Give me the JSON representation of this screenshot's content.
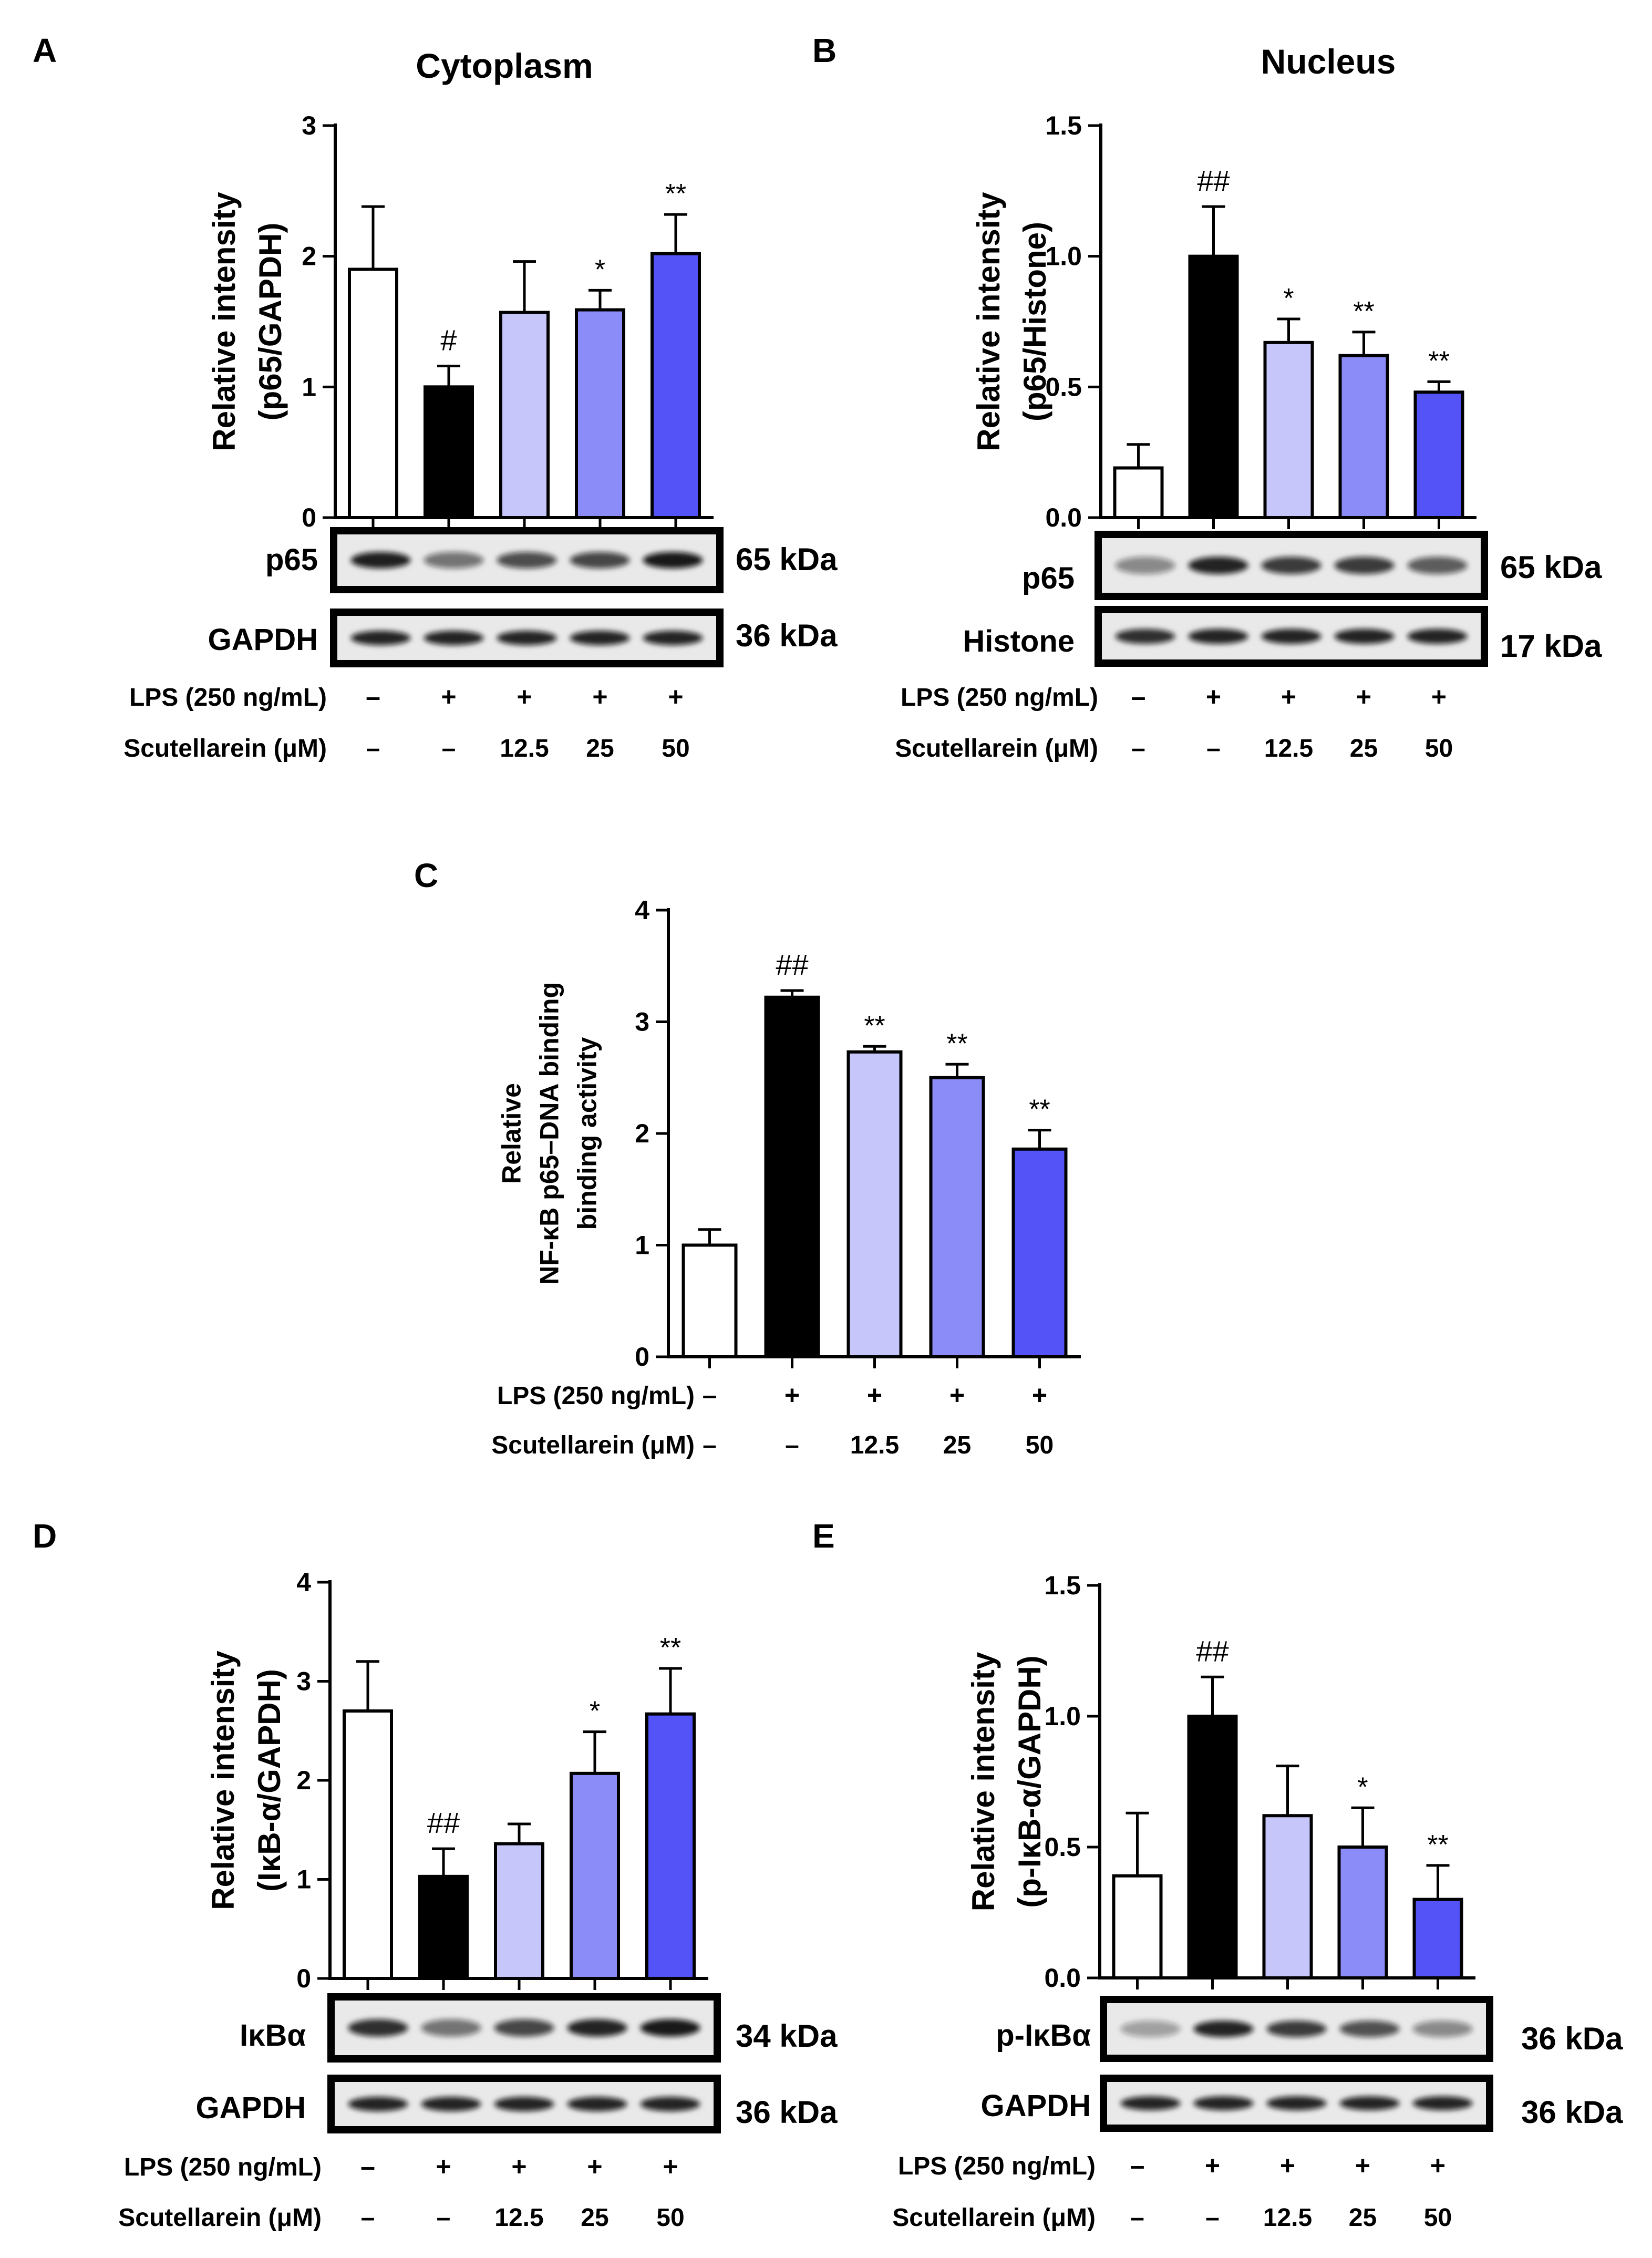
{
  "treatment_labels": {
    "lps": "LPS (250 ng/mL)",
    "scut": "Scutellarein (μM)",
    "lps_signs": [
      "–",
      "+",
      "+",
      "+",
      "+"
    ],
    "scut_doses": [
      "–",
      "–",
      "12.5",
      "25",
      "50"
    ]
  },
  "bar_colors": [
    "#ffffff",
    "#000000",
    "#c6c6fb",
    "#8c8cf9",
    "#5353f8"
  ],
  "chart_data": [
    {
      "id": "A",
      "panel_letter": "A",
      "type": "bar",
      "title": "Cytoplasm",
      "ylabel": [
        "Relative intensity",
        "(p65/GAPDH)"
      ],
      "ylim": [
        0,
        3
      ],
      "yticks": [
        "0",
        "1",
        "2",
        "3"
      ],
      "categories": [
        "Control",
        "LPS",
        "LPS+12.5",
        "LPS+25",
        "LPS+50"
      ],
      "values": [
        1.9,
        1.0,
        1.57,
        1.59,
        2.02
      ],
      "errors": [
        0.48,
        0.16,
        0.39,
        0.15,
        0.3
      ],
      "annotations": [
        "",
        "#",
        "",
        "*",
        "**"
      ],
      "blots": [
        {
          "label": "p65",
          "kda": "65 kDa",
          "bands": [
            0.92,
            0.55,
            0.72,
            0.75,
            0.95
          ]
        },
        {
          "label": "GAPDH",
          "kda": "36 kDa",
          "bands": [
            0.9,
            0.9,
            0.9,
            0.9,
            0.9
          ]
        }
      ]
    },
    {
      "id": "B",
      "panel_letter": "B",
      "type": "bar",
      "title": "Nucleus",
      "ylabel": [
        "Relative intensity",
        "(p65/Histone)"
      ],
      "ylim": [
        0,
        1.5
      ],
      "yticks": [
        "0.0",
        "0.5",
        "1.0",
        "1.5"
      ],
      "categories": [
        "Control",
        "LPS",
        "LPS+12.5",
        "LPS+25",
        "LPS+50"
      ],
      "values": [
        0.19,
        1.0,
        0.67,
        0.62,
        0.48
      ],
      "errors": [
        0.09,
        0.19,
        0.09,
        0.09,
        0.04
      ],
      "annotations": [
        "",
        "##",
        "*",
        "**",
        "**"
      ],
      "blots": [
        {
          "label": "p65",
          "kda": "65 kDa",
          "bands": [
            0.45,
            0.9,
            0.8,
            0.8,
            0.65
          ]
        },
        {
          "label": "Histone",
          "kda": "17 kDa",
          "bands": [
            0.85,
            0.9,
            0.9,
            0.9,
            0.9
          ]
        }
      ]
    },
    {
      "id": "C",
      "panel_letter": "C",
      "type": "bar",
      "title": "",
      "ylabel": [
        "Relative",
        "NF-κB p65–DNA binding",
        "binding activity"
      ],
      "ylim": [
        0,
        4
      ],
      "yticks": [
        "0",
        "1",
        "2",
        "3",
        "4"
      ],
      "categories": [
        "Control",
        "LPS",
        "LPS+12.5",
        "LPS+25",
        "LPS+50"
      ],
      "values": [
        1.0,
        3.22,
        2.73,
        2.5,
        1.86
      ],
      "errors": [
        0.14,
        0.06,
        0.05,
        0.12,
        0.17
      ],
      "annotations": [
        "",
        "##",
        "**",
        "**",
        "**"
      ],
      "blots": []
    },
    {
      "id": "D",
      "panel_letter": "D",
      "type": "bar",
      "title": "",
      "ylabel": [
        "Relative intensity",
        "(IκB-α/GAPDH)"
      ],
      "ylim": [
        0,
        4
      ],
      "yticks": [
        "0",
        "1",
        "2",
        "3",
        "4"
      ],
      "categories": [
        "Control",
        "LPS",
        "LPS+12.5",
        "LPS+25",
        "LPS+50"
      ],
      "values": [
        2.7,
        1.03,
        1.36,
        2.07,
        2.67
      ],
      "errors": [
        0.5,
        0.28,
        0.2,
        0.42,
        0.46
      ],
      "annotations": [
        "",
        "##",
        "",
        "*",
        "**"
      ],
      "blots": [
        {
          "label": "IκBα",
          "kda": "34 kDa",
          "bands": [
            0.85,
            0.55,
            0.75,
            0.9,
            0.95
          ]
        },
        {
          "label": "GAPDH",
          "kda": "36 kDa",
          "bands": [
            0.9,
            0.9,
            0.9,
            0.9,
            0.9
          ]
        }
      ]
    },
    {
      "id": "E",
      "panel_letter": "E",
      "type": "bar",
      "title": "",
      "ylabel": [
        "Relative intensity",
        "(p-IκB-α/GAPDH)"
      ],
      "ylim": [
        0,
        1.5
      ],
      "yticks": [
        "0.0",
        "0.5",
        "1.0",
        "1.5"
      ],
      "categories": [
        "Control",
        "LPS",
        "LPS+12.5",
        "LPS+25",
        "LPS+50"
      ],
      "values": [
        0.39,
        1.0,
        0.62,
        0.5,
        0.3
      ],
      "errors": [
        0.24,
        0.15,
        0.19,
        0.15,
        0.13
      ],
      "annotations": [
        "",
        "##",
        "",
        "*",
        "**"
      ],
      "blots": [
        {
          "label": "p-IκBα",
          "kda": "36 kDa",
          "bands": [
            0.35,
            0.9,
            0.8,
            0.7,
            0.45
          ]
        },
        {
          "label": "GAPDH",
          "kda": "36 kDa",
          "bands": [
            0.9,
            0.9,
            0.9,
            0.9,
            0.9
          ]
        }
      ]
    }
  ]
}
